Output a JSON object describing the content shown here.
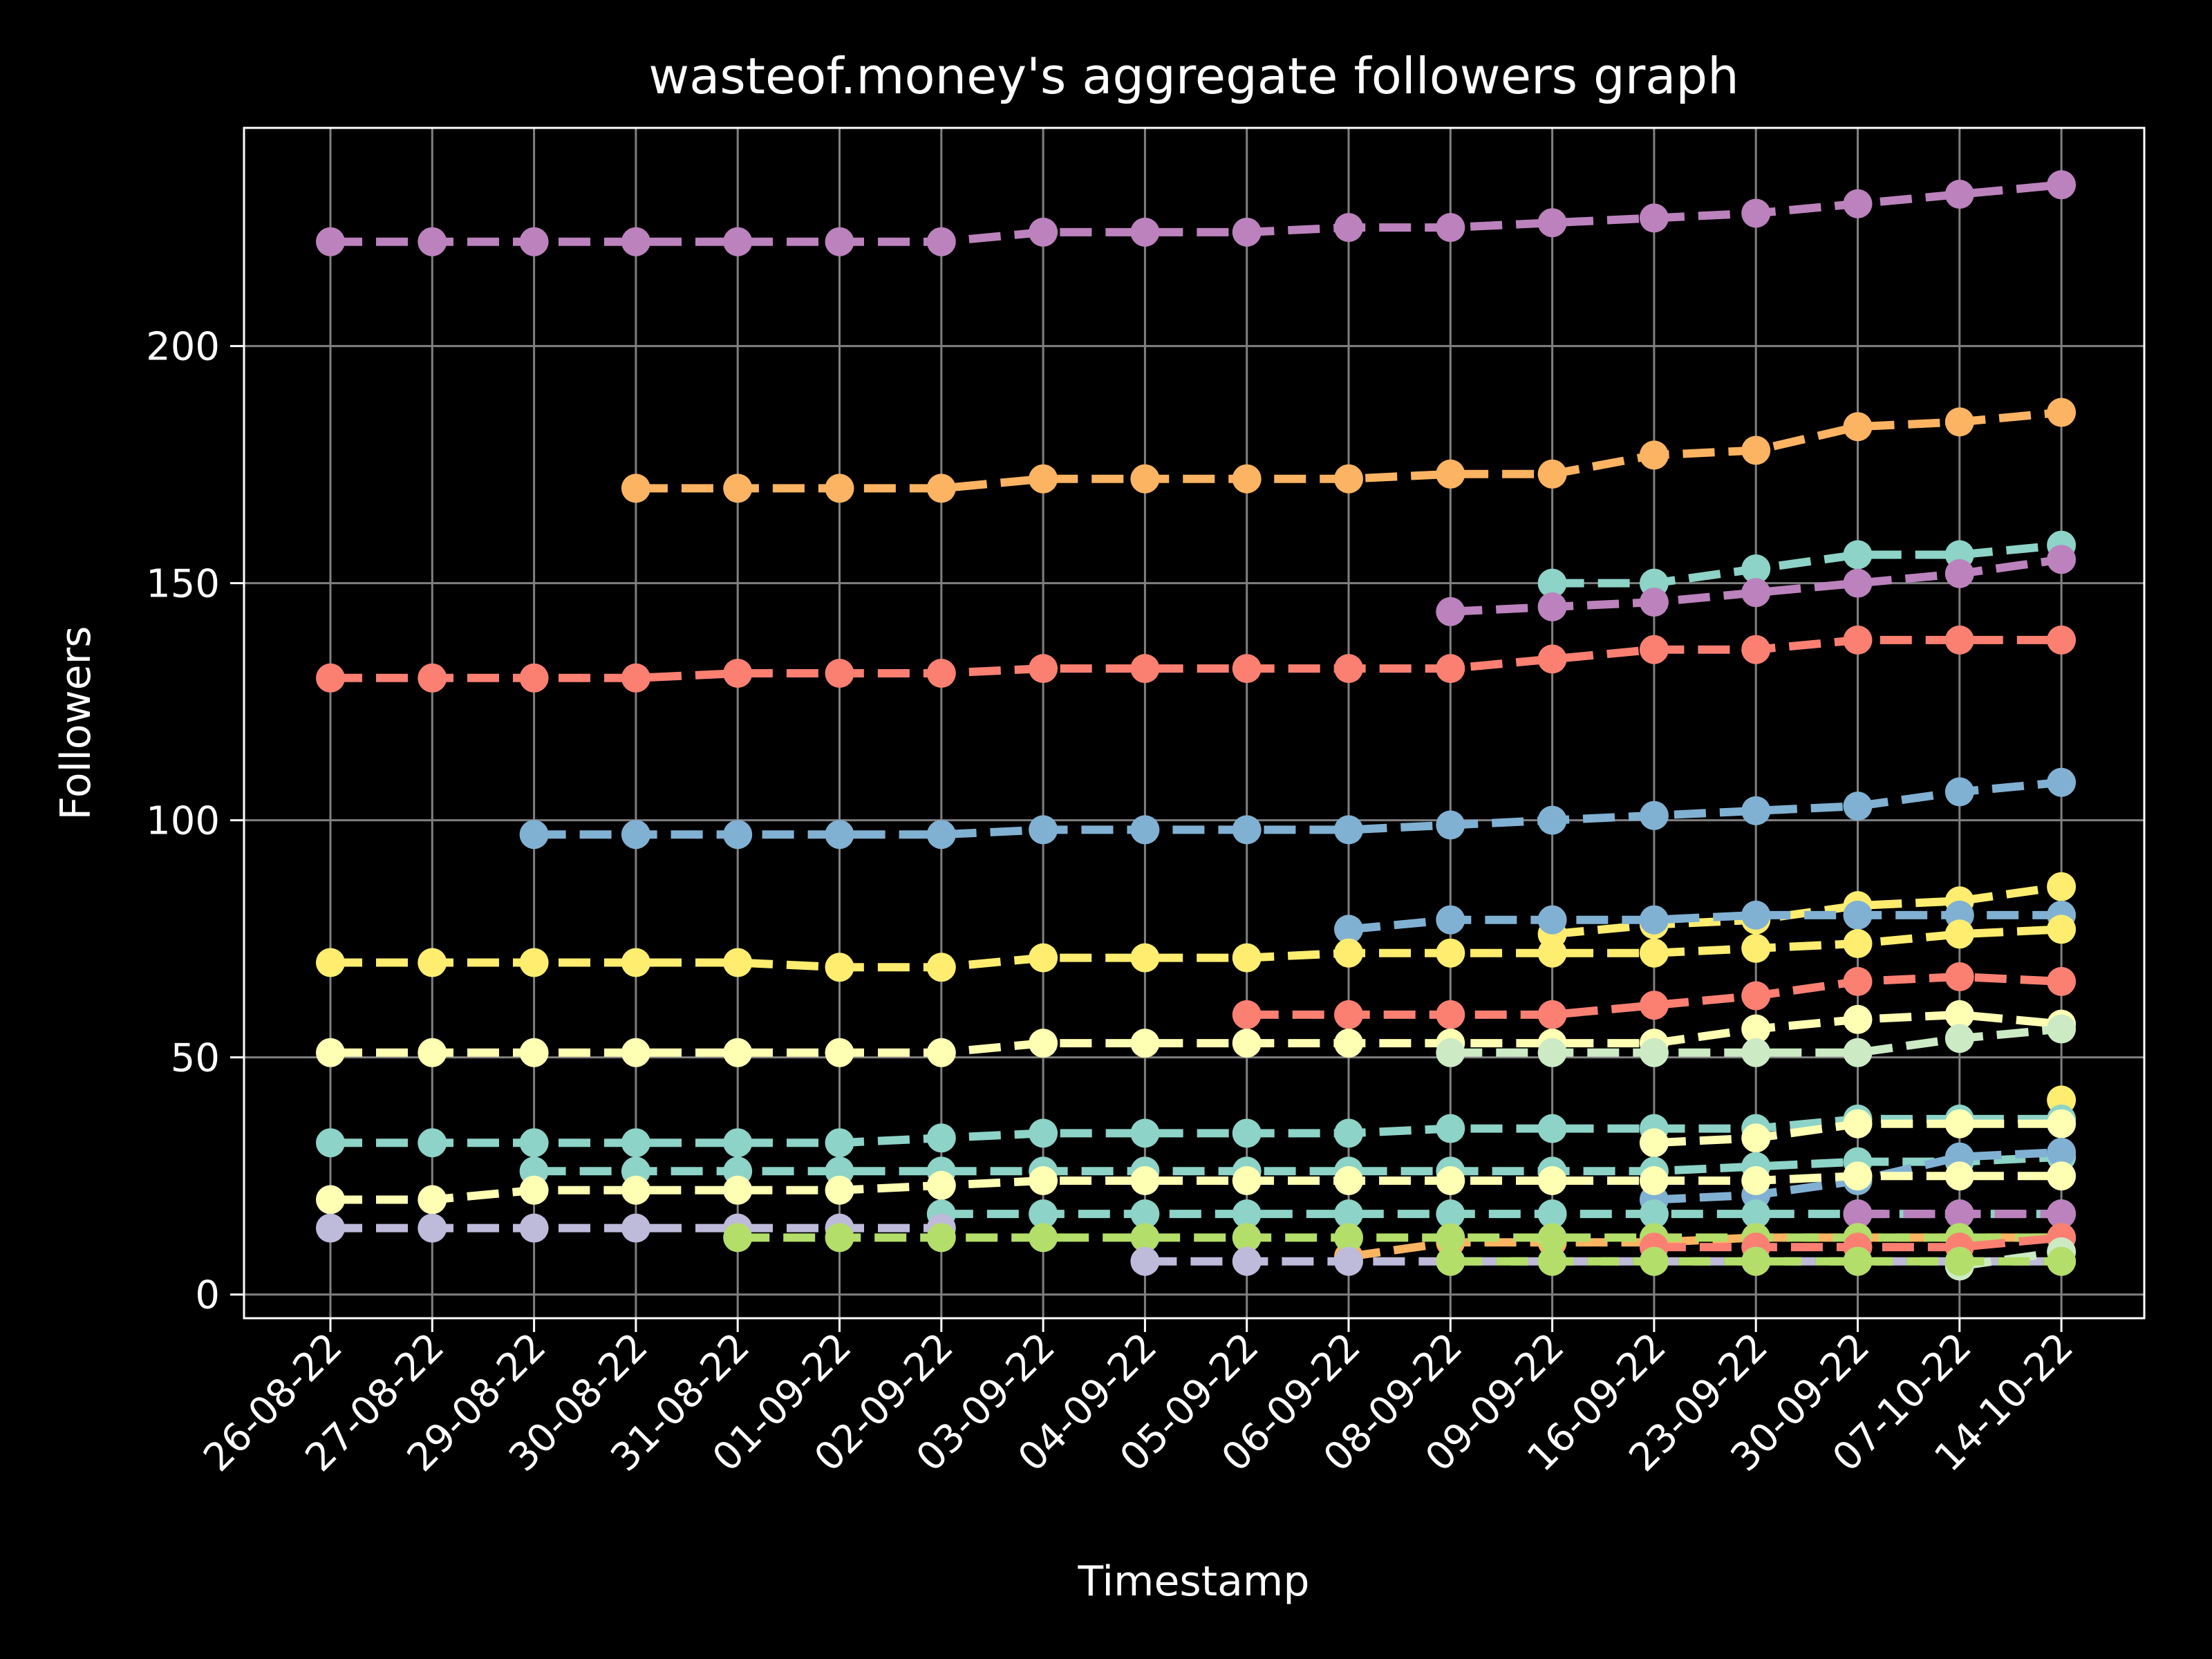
{
  "chart_data": {
    "type": "line",
    "title": "wasteof.money's aggregate followers graph",
    "xlabel": "Timestamp",
    "ylabel": "Followers",
    "ylim": [
      -5,
      246
    ],
    "yticks": [
      0,
      50,
      100,
      150,
      200
    ],
    "grid": true,
    "categories": [
      "26-08-22",
      "27-08-22",
      "29-08-22",
      "30-08-22",
      "31-08-22",
      "01-09-22",
      "02-09-22",
      "03-09-22",
      "04-09-22",
      "05-09-22",
      "06-09-22",
      "08-09-22",
      "09-09-22",
      "16-09-22",
      "23-09-22",
      "30-09-22",
      "07-10-22",
      "14-10-22"
    ],
    "series": [
      {
        "color": "#bc82bd",
        "values": [
          222,
          222,
          222,
          222,
          222,
          222,
          222,
          224,
          224,
          224,
          225,
          225,
          226,
          227,
          228,
          230,
          232,
          234
        ]
      },
      {
        "color": "#fdb462",
        "values": [
          null,
          null,
          null,
          170,
          170,
          170,
          170,
          172,
          172,
          172,
          172,
          173,
          173,
          177,
          178,
          183,
          184,
          186
        ]
      },
      {
        "color": "#8dd3c7",
        "values": [
          null,
          null,
          null,
          null,
          null,
          null,
          null,
          null,
          null,
          null,
          null,
          null,
          150,
          150,
          153,
          156,
          156,
          158
        ]
      },
      {
        "color": "#bc82bd",
        "values": [
          null,
          null,
          null,
          null,
          null,
          null,
          null,
          null,
          null,
          null,
          null,
          144,
          145,
          146,
          148,
          150,
          152,
          155
        ]
      },
      {
        "color": "#fb8072",
        "values": [
          130,
          130,
          130,
          130,
          131,
          131,
          131,
          132,
          132,
          132,
          132,
          132,
          134,
          136,
          136,
          138,
          138,
          138
        ]
      },
      {
        "color": "#80b1d3",
        "values": [
          null,
          null,
          97,
          97,
          97,
          97,
          97,
          98,
          98,
          98,
          98,
          99,
          100,
          101,
          102,
          103,
          106,
          108
        ]
      },
      {
        "color": "#ffed6f",
        "values": [
          null,
          null,
          null,
          null,
          null,
          null,
          null,
          null,
          null,
          null,
          null,
          null,
          76,
          78,
          79,
          82,
          83,
          86
        ]
      },
      {
        "color": "#80b1d3",
        "values": [
          null,
          null,
          null,
          null,
          null,
          null,
          null,
          null,
          null,
          null,
          77,
          79,
          79,
          79,
          80,
          80,
          80,
          80
        ]
      },
      {
        "color": "#ffed6f",
        "values": [
          70,
          70,
          70,
          70,
          70,
          69,
          69,
          71,
          71,
          71,
          72,
          72,
          72,
          72,
          73,
          74,
          76,
          77
        ]
      },
      {
        "color": "#fb8072",
        "values": [
          null,
          null,
          null,
          null,
          null,
          null,
          null,
          null,
          null,
          59,
          59,
          59,
          59,
          61,
          63,
          66,
          67,
          66
        ]
      },
      {
        "color": "#ffffb3",
        "values": [
          51,
          51,
          51,
          51,
          51,
          51,
          51,
          53,
          53,
          53,
          53,
          53,
          53,
          53,
          56,
          58,
          59,
          57
        ]
      },
      {
        "color": "#ccebc5",
        "values": [
          null,
          null,
          null,
          null,
          null,
          null,
          null,
          null,
          null,
          null,
          null,
          51,
          51,
          51,
          51,
          51,
          54,
          56
        ]
      },
      {
        "color": "#ffed6f",
        "values": [
          null,
          null,
          null,
          null,
          null,
          null,
          null,
          null,
          null,
          null,
          null,
          null,
          null,
          null,
          null,
          null,
          null,
          41
        ]
      },
      {
        "color": "#8dd3c7",
        "values": [
          32,
          32,
          32,
          32,
          32,
          32,
          33,
          34,
          34,
          34,
          34,
          35,
          35,
          35,
          35,
          37,
          37,
          37
        ]
      },
      {
        "color": "#ffffb3",
        "values": [
          null,
          null,
          null,
          null,
          null,
          null,
          null,
          null,
          null,
          null,
          null,
          null,
          null,
          32,
          33,
          36,
          36,
          36
        ]
      },
      {
        "color": "#8dd3c7",
        "values": [
          null,
          null,
          26,
          26,
          26,
          26,
          26,
          26,
          26,
          26,
          26,
          26,
          26,
          26,
          27,
          28,
          28,
          29
        ]
      },
      {
        "color": "#80b1d3",
        "values": [
          null,
          null,
          null,
          null,
          null,
          null,
          null,
          null,
          null,
          null,
          null,
          null,
          null,
          20,
          21,
          24,
          29,
          30
        ]
      },
      {
        "color": "#ffffb3",
        "values": [
          20,
          20,
          22,
          22,
          22,
          22,
          23,
          24,
          24,
          24,
          24,
          24,
          24,
          24,
          24,
          25,
          25,
          25
        ]
      },
      {
        "color": "#8dd3c7",
        "values": [
          null,
          null,
          null,
          null,
          null,
          null,
          17,
          17,
          17,
          17,
          17,
          17,
          17,
          17,
          17,
          17,
          17,
          17
        ]
      },
      {
        "color": "#bebada",
        "values": [
          14,
          14,
          14,
          14,
          14,
          14,
          14,
          null,
          null,
          null,
          null,
          null,
          null,
          null,
          null,
          null,
          null,
          null
        ]
      },
      {
        "color": "#bc82bd",
        "values": [
          null,
          null,
          null,
          null,
          null,
          null,
          null,
          null,
          null,
          null,
          null,
          null,
          null,
          null,
          null,
          17,
          17,
          17
        ]
      },
      {
        "color": "#fdb462",
        "values": [
          null,
          null,
          null,
          null,
          null,
          null,
          null,
          null,
          null,
          null,
          8,
          11,
          11,
          11,
          12,
          12,
          12,
          12
        ]
      },
      {
        "color": "#b3de69",
        "values": [
          null,
          null,
          null,
          null,
          12,
          12,
          12,
          12,
          12,
          12,
          12,
          12,
          12,
          12,
          12,
          12,
          12,
          12
        ]
      },
      {
        "color": "#fb8072",
        "values": [
          null,
          null,
          null,
          null,
          null,
          null,
          null,
          null,
          null,
          null,
          null,
          null,
          null,
          10,
          10,
          10,
          10,
          12
        ]
      },
      {
        "color": "#bebada",
        "values": [
          null,
          null,
          null,
          null,
          null,
          null,
          null,
          null,
          7,
          7,
          7,
          7,
          7,
          7,
          7,
          7,
          7,
          7
        ]
      },
      {
        "color": "#ccebc5",
        "values": [
          null,
          null,
          null,
          null,
          null,
          null,
          null,
          null,
          null,
          null,
          null,
          null,
          null,
          null,
          null,
          null,
          6,
          9
        ]
      },
      {
        "color": "#b3de69",
        "values": [
          null,
          null,
          null,
          null,
          null,
          null,
          null,
          null,
          null,
          null,
          null,
          7,
          7,
          7,
          7,
          7,
          7,
          7
        ]
      }
    ]
  }
}
